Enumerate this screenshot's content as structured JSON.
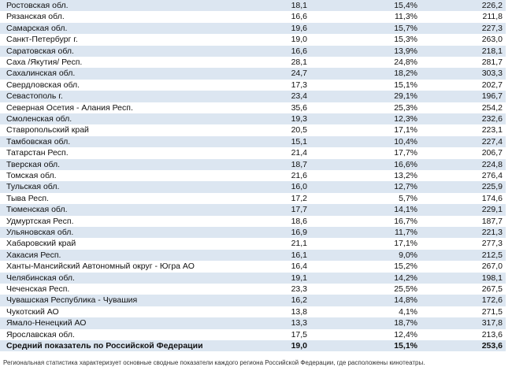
{
  "table": {
    "rows": [
      [
        "Ростовская обл.",
        "18,1",
        "15,4%",
        "226,2"
      ],
      [
        "Рязанская обл.",
        "16,6",
        "11,3%",
        "211,8"
      ],
      [
        "Самарская обл.",
        "19,6",
        "15,7%",
        "227,3"
      ],
      [
        "Санкт-Петербург г.",
        "19,0",
        "15,3%",
        "263,0"
      ],
      [
        "Саратовская обл.",
        "16,6",
        "13,9%",
        "218,1"
      ],
      [
        "Саха /Якутия/ Респ.",
        "28,1",
        "24,8%",
        "281,7"
      ],
      [
        "Сахалинская обл.",
        "24,7",
        "18,2%",
        "303,3"
      ],
      [
        "Свердловская обл.",
        "17,3",
        "15,1%",
        "202,7"
      ],
      [
        "Севастополь г.",
        "23,4",
        "29,1%",
        "196,7"
      ],
      [
        "Северная Осетия - Алания Респ.",
        "35,6",
        "25,3%",
        "254,2"
      ],
      [
        "Смоленская обл.",
        "19,3",
        "12,3%",
        "232,6"
      ],
      [
        "Ставропольский край",
        "20,5",
        "17,1%",
        "223,1"
      ],
      [
        "Тамбовская обл.",
        "15,1",
        "10,4%",
        "227,4"
      ],
      [
        "Татарстан Респ.",
        "21,4",
        "17,7%",
        "206,7"
      ],
      [
        "Тверская обл.",
        "18,7",
        "16,6%",
        "224,8"
      ],
      [
        "Томская обл.",
        "21,6",
        "13,2%",
        "276,4"
      ],
      [
        "Тульская обл.",
        "16,0",
        "12,7%",
        "225,9"
      ],
      [
        "Тыва Респ.",
        "17,2",
        "5,7%",
        "174,6"
      ],
      [
        "Тюменская обл.",
        "17,7",
        "14,1%",
        "229,1"
      ],
      [
        "Удмуртская Респ.",
        "18,6",
        "16,7%",
        "187,7"
      ],
      [
        "Ульяновская обл.",
        "16,9",
        "11,7%",
        "221,3"
      ],
      [
        "Хабаровский край",
        "21,1",
        "17,1%",
        "277,3"
      ],
      [
        "Хакасия Респ.",
        "16,1",
        "9,0%",
        "212,5"
      ],
      [
        "Ханты-Мансийский Автономный округ - Югра АО",
        "16,4",
        "15,2%",
        "267,0"
      ],
      [
        "Челябинская обл.",
        "19,1",
        "14,2%",
        "198,1"
      ],
      [
        "Чеченская Респ.",
        "23,3",
        "25,5%",
        "267,5"
      ],
      [
        "Чувашская Республика - Чувашия",
        "16,2",
        "14,8%",
        "172,6"
      ],
      [
        "Чукотский АО",
        "13,8",
        "4,1%",
        "271,5"
      ],
      [
        "Ямало-Ненецкий АО",
        "13,3",
        "18,7%",
        "317,8"
      ],
      [
        "Ярославская обл.",
        "17,5",
        "12,4%",
        "213,6"
      ]
    ],
    "total": [
      "Средний показатель по Российской Федерации",
      "19,0",
      "15,1%",
      "253,6"
    ]
  },
  "footnote": "Региональная статистика характеризует основные сводные показатели каждого региона Российской Федерации, где расположены кинотеатры."
}
